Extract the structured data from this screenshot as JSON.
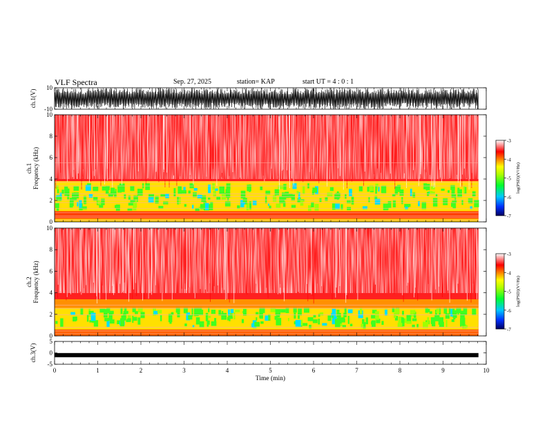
{
  "header": {
    "title": "VLF Spectra",
    "date": "Sep. 27, 2025",
    "station": "station= KAP",
    "start_ut": "start UT =  4 : 0  : 1"
  },
  "chart_data": [
    {
      "type": "line",
      "panel": "ch1-waveform",
      "ylabel": "ch.1(V)",
      "ylim": [
        -10,
        10
      ],
      "y_ticks": [
        "10",
        "-10"
      ],
      "xlim": [
        0,
        10
      ],
      "data_end_min": 9.82,
      "description_of_signal": "dense broadband noise waveform",
      "color": "#000000"
    },
    {
      "type": "heatmap",
      "panel": "ch1-spectrogram",
      "ylabel": "ch.1\nFrequency (kHz)",
      "ylim": [
        0,
        10
      ],
      "y_ticks": [
        "0",
        "2",
        "4",
        "6",
        "8",
        "10"
      ],
      "xlim": [
        0,
        10
      ],
      "data_end_min": 9.82,
      "colorbar": {
        "label": "log(PSD)(V²/Hz)",
        "range": [
          -7,
          -3
        ],
        "ticks": [
          "-3",
          "-4",
          "-5",
          "-6",
          "-7"
        ]
      }
    },
    {
      "type": "heatmap",
      "panel": "ch2-spectrogram",
      "ylabel": "ch.2\nFrequency (kHz)",
      "ylim": [
        0,
        10
      ],
      "y_ticks": [
        "0",
        "2",
        "4",
        "6",
        "8",
        "10"
      ],
      "xlim": [
        0,
        10
      ],
      "data_end_min": 9.82,
      "colorbar": {
        "label": "log(PSD)(V²/Hz)",
        "range": [
          -7,
          -3
        ],
        "ticks": [
          "-3",
          "-4",
          "-5",
          "-6",
          "-7"
        ]
      }
    },
    {
      "type": "line",
      "panel": "ch3-waveform",
      "ylabel": "ch.3(V)",
      "ylim": [
        -5,
        5
      ],
      "y_ticks": [
        "5",
        "0",
        "-5"
      ],
      "xlim": [
        0,
        10
      ],
      "data_end_min": 9.82,
      "level_v": -1,
      "color": "#000000"
    }
  ],
  "x_axis": {
    "label": "Time (min)",
    "ticks": [
      "0",
      "1",
      "2",
      "3",
      "4",
      "5",
      "6",
      "7",
      "8",
      "9",
      "10"
    ]
  },
  "colors": {
    "colormap": [
      "#000080",
      "#0040ff",
      "#00c8ff",
      "#00ff40",
      "#a0ff00",
      "#ffff00",
      "#ff9000",
      "#ff0000",
      "#ffffff"
    ]
  }
}
